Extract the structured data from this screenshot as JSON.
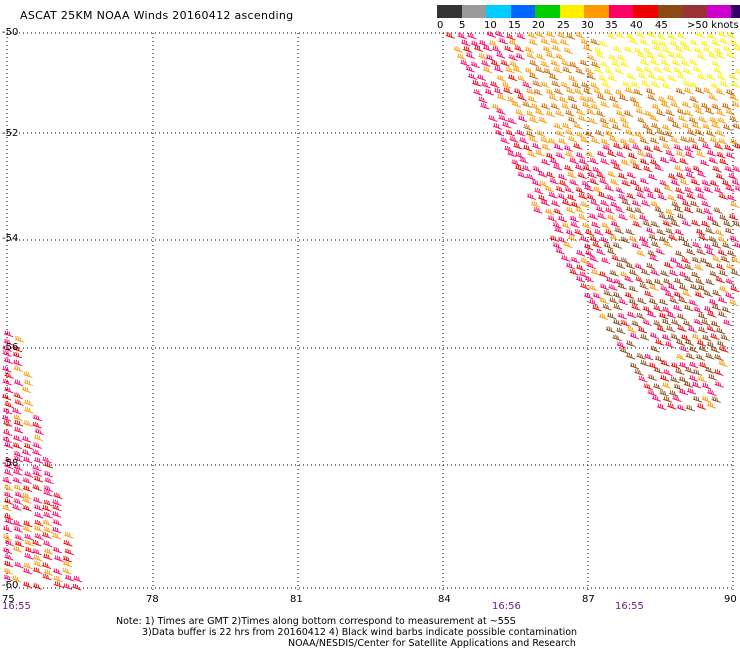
{
  "title": "ASCAT 25KM NOAA Winds 20160412 ascending",
  "legend": {
    "colors": [
      "#333333",
      "#9a9a9a",
      "#00ccff",
      "#0066ff",
      "#00cc00",
      "#ffee00",
      "#ff9900",
      "#ff0066",
      "#ee0000",
      "#8a4a14",
      "#993333",
      "#cc00cc",
      "#330066"
    ],
    "labels": [
      "0",
      "5",
      "10",
      "15",
      "20",
      "25",
      "30",
      "35",
      "40",
      "45",
      ">50 knots"
    ]
  },
  "map": {
    "lon_labels": [
      "75",
      "78",
      "81",
      "84",
      "87",
      "90"
    ],
    "lat_labels": [
      "-50",
      "-52",
      "-54",
      "-56",
      "-58",
      "-60"
    ],
    "time_labels": [
      "16:55",
      "16:56",
      "16:55"
    ],
    "wind_colors": [
      "#ff0066",
      "#ee0000",
      "#ff9900",
      "#cc6600",
      "#8a4a14",
      "#ffee00"
    ]
  },
  "notes": {
    "line1": "Note: 1) Times are GMT 2)Times along bottom correspond to measurement at ~55S",
    "line2": "3)Data buffer is 22 hrs from 20160412 4) Black wind barbs indicate possible contamination",
    "line3": "NOAA/NESDIS/Center for Satellite Applications and Research"
  }
}
